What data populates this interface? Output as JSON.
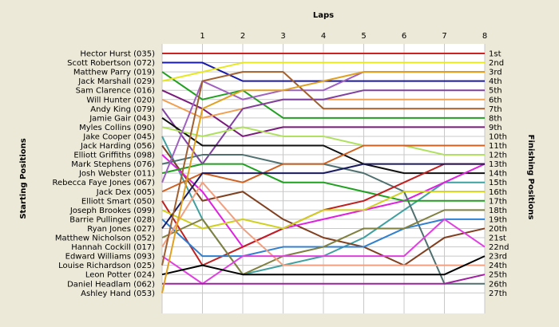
{
  "chart_data": {
    "type": "line",
    "xlabel": "Laps",
    "ylabel_left": "Starting Positions",
    "ylabel_right": "Finishing Positions",
    "x": [
      0,
      1,
      2,
      3,
      4,
      5,
      6,
      7,
      8
    ],
    "x_tick_labels": [
      "1",
      "2",
      "3",
      "4",
      "5",
      "6",
      "7",
      "8"
    ],
    "ylim": [
      1,
      27
    ],
    "y_inverted": true,
    "grid": true,
    "start_labels": [
      "Hector Hurst (035)",
      "Scott Robertson (072)",
      "Matthew Parry (019)",
      "Jack Marshall (029)",
      "Sam Clarence (016)",
      "Will Hunter (020)",
      "Andy King (079)",
      "Jamie Gair (043)",
      "Myles Collins (090)",
      "Jake Cooper (045)",
      "Jack Harding (056)",
      "Elliott Griffiths (098)",
      "Mark Stephens (076)",
      "Josh Webster (011)",
      "Rebecca Faye Jones (067)",
      "Jack Dex (005)",
      "Elliott Smart (050)",
      "Joseph Brookes (099)",
      "Barrie Pullinger (028)",
      "Ryan Jones (027)",
      "Matthew Nicholson (052)",
      "Hannah Cockill (017)",
      "Edward Williams (093)",
      "Louise Richardson (025)",
      "Leon Potter (024)",
      "Daniel Headlam (062)",
      "Ashley Hand (053)"
    ],
    "finish_labels": [
      "1st",
      "2nd",
      "3rd",
      "4th",
      "5th",
      "6th",
      "7th",
      "8th",
      "9th",
      "10th",
      "11th",
      "12th",
      "13th",
      "14th",
      "15th",
      "16th",
      "17th",
      "18th",
      "19th",
      "20th",
      "21st",
      "22nd",
      "23rd",
      "24th",
      "25th",
      "26th",
      "27th"
    ],
    "series": [
      {
        "color": "#cc2222",
        "values": [
          1,
          1,
          1,
          1,
          1,
          1,
          1,
          1,
          1
        ]
      },
      {
        "color": "#1a1aa8",
        "values": [
          2,
          2,
          4,
          4,
          4,
          4,
          4,
          4,
          4
        ]
      },
      {
        "color": "#22a022",
        "values": [
          3,
          6,
          5,
          8,
          8,
          8,
          8,
          8,
          8
        ]
      },
      {
        "color": "#e8e820",
        "values": [
          4,
          3,
          2,
          2,
          2,
          2,
          2,
          2,
          2
        ]
      },
      {
        "color": "#7a1a7a",
        "values": [
          5,
          7,
          10,
          9,
          9,
          9,
          9,
          9,
          9
        ]
      },
      {
        "color": "#f0a050",
        "values": [
          6,
          8,
          7,
          6,
          6,
          6,
          6,
          6,
          6
        ]
      },
      {
        "color": "#8040a0",
        "values": [
          7,
          13,
          7,
          6,
          6,
          5,
          5,
          5,
          5
        ]
      },
      {
        "color": "#101010",
        "values": [
          8,
          11,
          11,
          11,
          11,
          13,
          14,
          14,
          14
        ]
      },
      {
        "color": "#b0e060",
        "values": [
          9,
          10,
          9,
          10,
          10,
          11,
          11,
          12,
          12
        ]
      },
      {
        "color": "#40a0a0",
        "values": [
          10,
          19,
          25,
          24,
          23,
          21,
          18,
          15,
          15
        ]
      },
      {
        "color": "#804020",
        "values": [
          11,
          17,
          16,
          19,
          21,
          22,
          24,
          21,
          20
        ]
      },
      {
        "color": "#e020e0",
        "values": [
          12,
          16,
          22,
          20,
          19,
          18,
          17,
          15,
          13
        ]
      },
      {
        "color": "#507070",
        "values": [
          13,
          12,
          12,
          13,
          13,
          14,
          16,
          26,
          26
        ]
      },
      {
        "color": "#20a020",
        "values": [
          14,
          13,
          13,
          15,
          15,
          16,
          17,
          17,
          17
        ]
      },
      {
        "color": "#a060c0",
        "values": [
          15,
          4,
          6,
          5,
          5,
          3,
          3,
          3,
          3
        ]
      },
      {
        "color": "#d06020",
        "values": [
          16,
          14,
          15,
          13,
          13,
          11,
          11,
          11,
          11
        ]
      },
      {
        "color": "#c02020",
        "values": [
          17,
          24,
          22,
          20,
          18,
          17,
          15,
          13,
          13
        ]
      },
      {
        "color": "#d0d020",
        "values": [
          18,
          20,
          19,
          20,
          18,
          18,
          16,
          16,
          16
        ]
      },
      {
        "color": "#3080d0",
        "values": [
          19,
          23,
          23,
          22,
          22,
          22,
          20,
          19,
          19
        ]
      },
      {
        "color": "#1a1a60",
        "values": [
          20,
          14,
          14,
          14,
          14,
          13,
          13,
          13,
          13
        ]
      },
      {
        "color": "#808040",
        "values": [
          21,
          19,
          25,
          23,
          22,
          20,
          20,
          18,
          18
        ]
      },
      {
        "color": "#f0a080",
        "values": [
          22,
          15,
          20,
          24,
          24,
          24,
          24,
          24,
          24
        ]
      },
      {
        "color": "#e040e0",
        "values": [
          23,
          26,
          23,
          23,
          23,
          23,
          23,
          19,
          22
        ]
      },
      {
        "color": "#a06030",
        "values": [
          24,
          4,
          3,
          3,
          7,
          7,
          7,
          7,
          7
        ]
      },
      {
        "color": "#000000",
        "values": [
          25,
          24,
          25,
          25,
          25,
          25,
          25,
          25,
          23
        ]
      },
      {
        "color": "#a020a0",
        "values": [
          26,
          26,
          26,
          26,
          26,
          26,
          26,
          26,
          25
        ]
      },
      {
        "color": "#e0a020",
        "values": [
          27,
          7,
          5,
          5,
          4,
          3,
          3,
          3,
          3
        ]
      }
    ]
  }
}
